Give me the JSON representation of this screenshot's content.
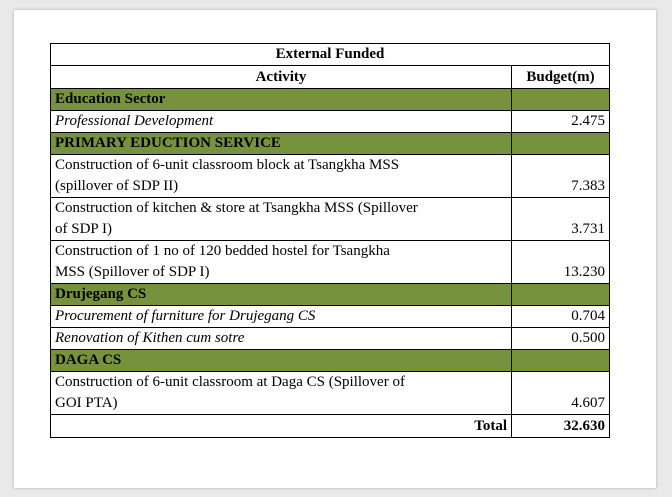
{
  "table": {
    "title": "External Funded",
    "header": {
      "activity": "Activity",
      "budget": "Budget(m)"
    },
    "rows": [
      {
        "type": "sector",
        "label": "Education Sector"
      },
      {
        "type": "item",
        "italic": true,
        "activity": "Professional Development",
        "budget": "2.475"
      },
      {
        "type": "sector",
        "label": "PRIMARY EDUCTION SERVICE"
      },
      {
        "type": "item",
        "italic": false,
        "activity_line1": "Construction of 6-unit classroom block at Tsangkha MSS",
        "activity_line2": "(spillover of SDP II)",
        "budget": "7.383"
      },
      {
        "type": "item",
        "italic": false,
        "activity_line1": "Construction of kitchen & store at Tsangkha MSS (Spillover",
        "activity_line2": "of SDP I)",
        "budget": "3.731"
      },
      {
        "type": "item",
        "italic": false,
        "activity_line1": "Construction of 1 no of 120 bedded hostel for Tsangkha",
        "activity_line2": "MSS (Spillover of SDP I)",
        "budget": "13.230"
      },
      {
        "type": "sector",
        "label": "Drujegang CS"
      },
      {
        "type": "item",
        "italic": true,
        "activity": "Procurement of furniture for Drujegang CS",
        "budget": "0.704"
      },
      {
        "type": "item",
        "italic": true,
        "activity": "Renovation of Kithen cum sotre",
        "budget": "0.500"
      },
      {
        "type": "sector",
        "label": "DAGA CS"
      },
      {
        "type": "item",
        "italic": false,
        "activity_line1": "Construction of 6-unit classroom at Daga CS (Spillover of",
        "activity_line2": "GOI PTA)",
        "budget": "4.607"
      }
    ],
    "total": {
      "label": "Total",
      "value": "32.630"
    }
  },
  "colors": {
    "sector_fill": "#76923c",
    "page_bg": "#e9e9e9"
  }
}
